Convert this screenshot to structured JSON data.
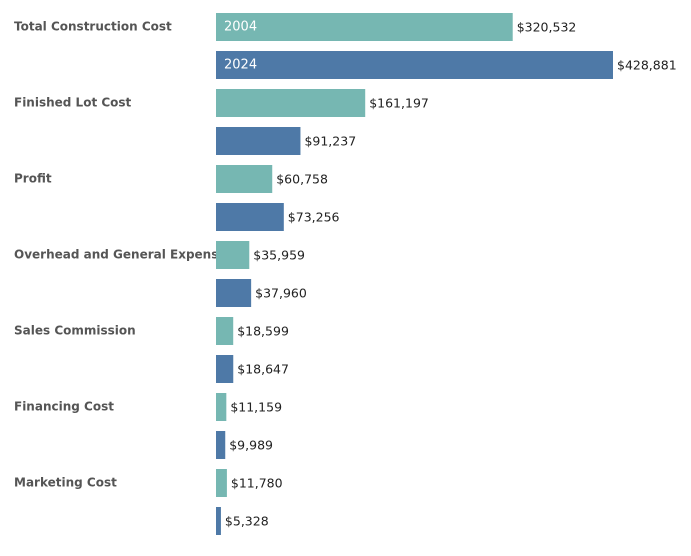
{
  "chart_data": {
    "type": "grouped-bar",
    "categories": [
      "Total Construction Cost",
      "Finished Lot Cost",
      "Profit",
      "Overhead and General Expenses",
      "Sales Commission",
      "Financing Cost",
      "Marketing Cost"
    ],
    "series": [
      {
        "name": "2004",
        "color": "#76b7b2",
        "values": [
          320532,
          161197,
          60758,
          35959,
          18599,
          11159,
          11780
        ],
        "value_labels": [
          "$320,532",
          "$161,197",
          "$60,758",
          "$35,959",
          "$18,599",
          "$11,159",
          "$11,780"
        ]
      },
      {
        "name": "2024",
        "color": "#4e79a7",
        "values": [
          428881,
          91237,
          73256,
          37960,
          18647,
          9989,
          5328
        ],
        "value_labels": [
          "$428,881",
          "$91,237",
          "$73,256",
          "$37,960",
          "$18,647",
          "$9,989",
          "$5,328"
        ]
      }
    ]
  }
}
